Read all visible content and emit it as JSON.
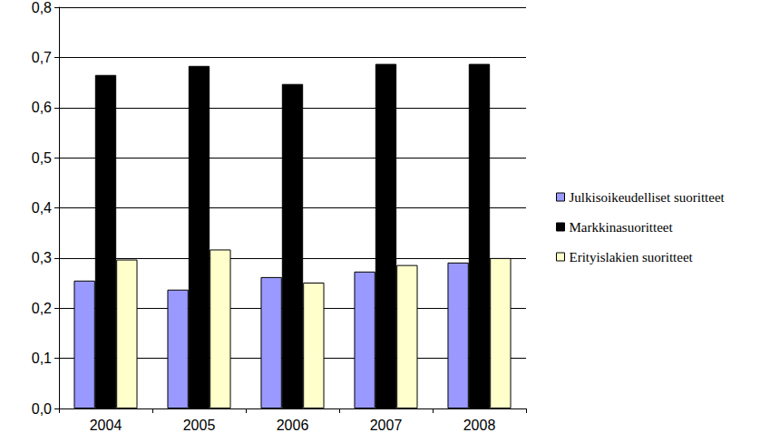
{
  "chart_data": {
    "type": "bar",
    "categories": [
      "2004",
      "2005",
      "2006",
      "2007",
      "2008"
    ],
    "series": [
      {
        "name": "Julkisoikeudelliset suoritteet",
        "color": "#9999ff",
        "values": [
          0.255,
          0.237,
          0.262,
          0.273,
          0.291
        ]
      },
      {
        "name": "Markkinasuoritteet",
        "color": "#000000",
        "values": [
          0.665,
          0.683,
          0.647,
          0.687,
          0.687
        ]
      },
      {
        "name": "Erityislakien suoritteet",
        "color": "#ffffcc",
        "values": [
          0.297,
          0.317,
          0.251,
          0.286,
          0.3
        ]
      }
    ],
    "ylim": [
      0,
      0.8
    ],
    "yticks": [
      {
        "value": 0,
        "label": "0,0"
      },
      {
        "value": 0.1,
        "label": "0,1"
      },
      {
        "value": 0.2,
        "label": "0,2"
      },
      {
        "value": 0.3,
        "label": "0,3"
      },
      {
        "value": 0.4,
        "label": "0,4"
      },
      {
        "value": 0.5,
        "label": "0,5"
      },
      {
        "value": 0.6,
        "label": "0,6"
      },
      {
        "value": 0.7,
        "label": "0,7"
      },
      {
        "value": 0.8,
        "label": "0,8"
      }
    ],
    "grid": true,
    "legend": "right"
  }
}
